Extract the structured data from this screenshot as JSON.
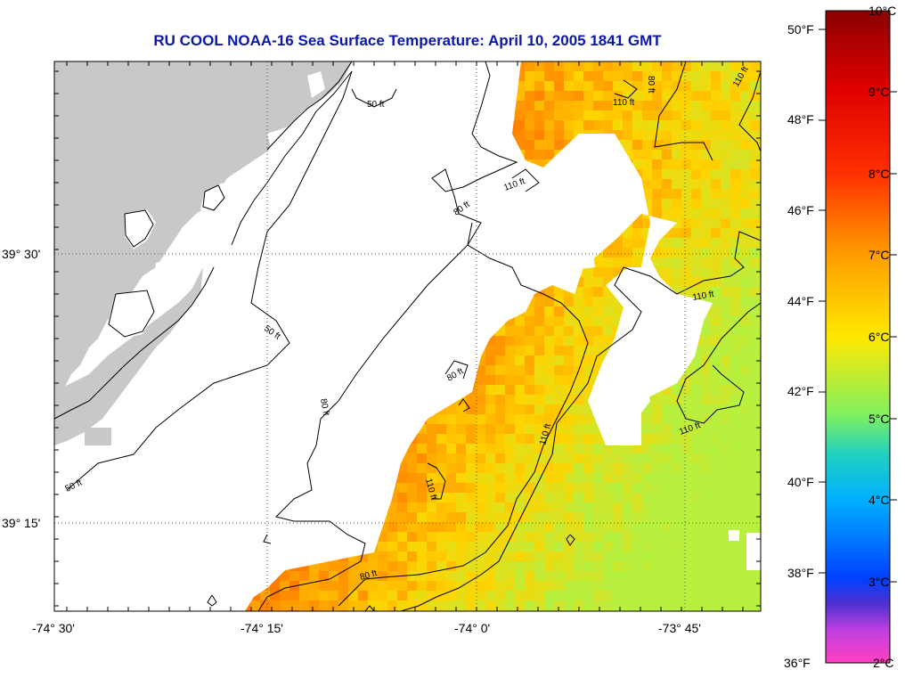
{
  "title": "RU COOL  NOAA-16  Sea Surface Temperature:  April 10, 2005 1841 GMT",
  "map": {
    "lat_labels": [
      "39° 30'",
      "39° 15'"
    ],
    "lon_labels": [
      "-74° 30'",
      "-74° 15'",
      "-74° 0'",
      "-73° 45'"
    ],
    "depth_labels": [
      "50 ft",
      "50 ft",
      "50 ft",
      "80 ft",
      "80 ft",
      "80 ft",
      "80 ft",
      "80 ft",
      "110 ft",
      "110 ft",
      "110 ft",
      "110 ft",
      "110 ft",
      "110 ft",
      "110 ft"
    ]
  },
  "legend": {
    "fahrenheit_labels": [
      "50°F",
      "48°F",
      "46°F",
      "44°F",
      "42°F",
      "40°F",
      "38°F",
      "36°F"
    ],
    "celsius_labels": [
      "10°C",
      "9°C",
      "8°C",
      "7°C",
      "6°C",
      "5°C",
      "4°C",
      "3°C",
      "2°C"
    ]
  },
  "colors": {
    "land": "#c8c8c8",
    "title": "#0a17a8",
    "sst_warm": "#ff7a00",
    "sst_mid": "#ffd400",
    "sst_cool": "#b8f040"
  }
}
